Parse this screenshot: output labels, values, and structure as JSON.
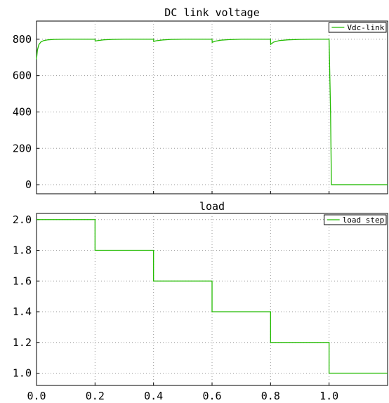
{
  "chart_data": [
    {
      "type": "line",
      "title": "DC link voltage",
      "xlabel": "",
      "ylabel": "",
      "xlim": [
        0,
        1.2
      ],
      "ylim": [
        -50,
        900
      ],
      "x_ticks": [
        0.0,
        0.2,
        0.4,
        0.6,
        0.8,
        1.0
      ],
      "y_ticks": [
        0,
        200,
        400,
        600,
        800
      ],
      "y_tick_labels": [
        "0",
        "200",
        "400",
        "600",
        "800"
      ],
      "grid": true,
      "legend": "top-right",
      "series": [
        {
          "name": "Vdc-link",
          "color": "#22bb00",
          "x": [
            0,
            0.003,
            0.008,
            0.015,
            0.025,
            0.04,
            0.06,
            0.1,
            0.2,
            0.2005,
            0.21,
            0.23,
            0.26,
            0.3,
            0.4,
            0.4005,
            0.41,
            0.43,
            0.46,
            0.5,
            0.6,
            0.6005,
            0.61,
            0.63,
            0.66,
            0.7,
            0.8,
            0.8005,
            0.81,
            0.83,
            0.86,
            0.9,
            0.95,
            1.0,
            1.005,
            1.008,
            1.2
          ],
          "values": [
            690,
            740,
            770,
            785,
            793,
            797,
            799,
            800,
            800,
            790,
            793,
            797,
            799,
            800,
            800,
            788,
            792,
            796,
            799,
            800,
            800,
            783,
            789,
            795,
            798,
            800,
            800,
            772,
            784,
            793,
            797,
            799,
            800,
            800,
            400,
            0,
            0
          ]
        }
      ]
    },
    {
      "type": "line",
      "title": "load",
      "xlabel": "",
      "ylabel": "",
      "xlim": [
        0,
        1.2
      ],
      "ylim": [
        0.92,
        2.04
      ],
      "x_ticks": [
        0.0,
        0.2,
        0.4,
        0.6,
        0.8,
        1.0
      ],
      "x_tick_labels": [
        "0.0",
        "0.2",
        "0.4",
        "0.6",
        "0.8",
        "1.0"
      ],
      "y_ticks": [
        1.0,
        1.2,
        1.4,
        1.6,
        1.8,
        2.0
      ],
      "y_tick_labels": [
        "1.0",
        "1.2",
        "1.4",
        "1.6",
        "1.8",
        "2.0"
      ],
      "grid": true,
      "legend": "top-right",
      "series": [
        {
          "name": "load step",
          "color": "#22bb00",
          "x": [
            0,
            0.2,
            0.2,
            0.4,
            0.4,
            0.6,
            0.6,
            0.8,
            0.8,
            1.0,
            1.0,
            1.2
          ],
          "values": [
            2.0,
            2.0,
            1.8,
            1.8,
            1.6,
            1.6,
            1.4,
            1.4,
            1.2,
            1.2,
            1.0,
            1.0
          ]
        }
      ]
    }
  ]
}
